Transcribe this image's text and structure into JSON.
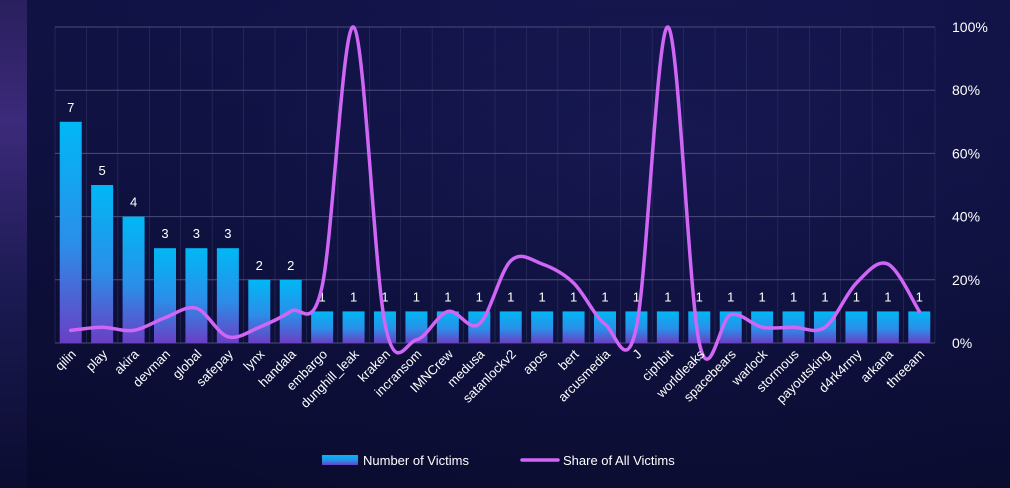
{
  "chart_data": {
    "type": "bar",
    "categories": [
      "qilin",
      "play",
      "akira",
      "devman",
      "global",
      "safepay",
      "lynx",
      "handala",
      "embargo",
      "dunghill_leak",
      "kraken",
      "incransom",
      "IMNCrew",
      "medusa",
      "satanlockv2",
      "apos",
      "bert",
      "arcusmedia",
      "J",
      "ciphbit",
      "worldleaks",
      "spacebears",
      "warlock",
      "stormous",
      "payoutsking",
      "d4rk4rmy",
      "arkana",
      "threeam"
    ],
    "series": [
      {
        "name": "Number of Victims",
        "type": "bar",
        "axis": "left",
        "values": [
          7,
          5,
          4,
          3,
          3,
          3,
          2,
          2,
          1,
          1,
          1,
          1,
          1,
          1,
          1,
          1,
          1,
          1,
          1,
          1,
          1,
          1,
          1,
          1,
          1,
          1,
          1,
          1
        ],
        "data_labels": [
          "7",
          "5",
          "4",
          "3",
          "3",
          "3",
          "2",
          "2",
          "1",
          "1",
          "1",
          "1",
          "1",
          "1",
          "1",
          "1",
          "1",
          "1",
          "1",
          "1",
          "1",
          "1",
          "1",
          "1",
          "1",
          "1",
          "1",
          "1"
        ]
      },
      {
        "name": "Share of All Victims",
        "type": "line",
        "axis": "right",
        "values": [
          4,
          5,
          4,
          8,
          11,
          2,
          5,
          10,
          18,
          100,
          6,
          1,
          10,
          6,
          26,
          25,
          19,
          6,
          5,
          100,
          0,
          9,
          5,
          5,
          5,
          19,
          25,
          10
        ]
      }
    ],
    "y_left_range": [
      0,
      10
    ],
    "y_right_range": [
      0,
      100
    ],
    "y_right_ticks": [
      "0%",
      "20%",
      "40%",
      "60%",
      "80%",
      "100%"
    ],
    "grid": true,
    "legend_position": "bottom-center",
    "colors": {
      "bar_top": "#00b8f5",
      "bar_bottom": "#6a3fc4",
      "line": "#d066f5",
      "grid": "#4a4c78",
      "text": "#ffffff"
    }
  },
  "legend": {
    "bars_label": "Number of Victims",
    "line_label": "Share of All Victims"
  }
}
